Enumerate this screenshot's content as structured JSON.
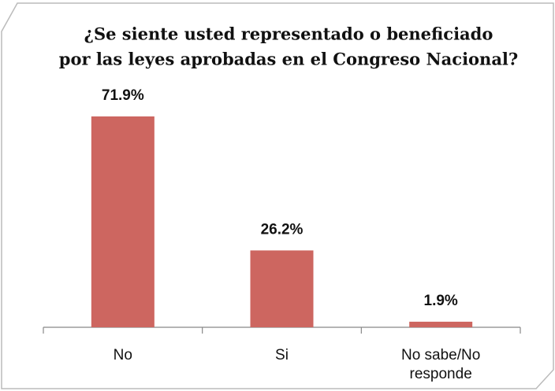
{
  "chart_data": {
    "type": "bar",
    "title": [
      "¿Se siente usted representado o beneficiado",
      "por las leyes aprobadas en el Congreso Nacional?"
    ],
    "categories": [
      "No",
      "Si",
      "No sabe/No responde"
    ],
    "values": [
      71.9,
      26.2,
      1.9
    ],
    "value_labels": [
      "71.9%",
      "26.2%",
      "1.9%"
    ],
    "color": "#cd6660"
  }
}
